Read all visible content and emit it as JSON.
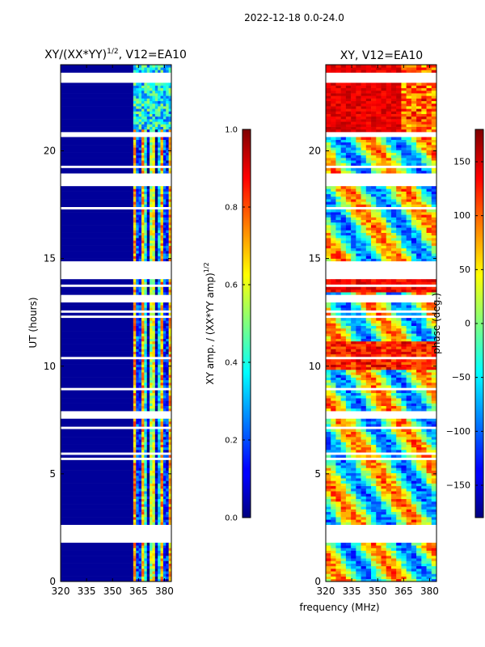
{
  "figure": {
    "suptitle": "2022-12-18 0.0-24.0",
    "shared_xlabel": "frequency (MHz)"
  },
  "chart_data": [
    {
      "type": "heatmap",
      "title": "XY/(XX*YY)^1/2, V12=EA10",
      "title_main": "XY/(XX*YY)",
      "title_exp": "1/2",
      "title_tail": ", V12=EA10",
      "ylabel": "UT (hours)",
      "x_ticks": [
        320,
        335,
        350,
        365,
        380
      ],
      "x_tick_labels": [
        "320",
        "335",
        "350",
        "365",
        "380"
      ],
      "xlim": [
        320,
        384
      ],
      "y_ticks": [
        0,
        5,
        10,
        15,
        20
      ],
      "y_tick_labels": [
        "0",
        "5",
        "10",
        "15",
        "20"
      ],
      "ylim": [
        0,
        24
      ],
      "colorbar": {
        "label": "XY amp. / (XX*YY amp)^1/2",
        "label_main": "XY amp. / (XX*YY amp)",
        "label_exp": "1/2",
        "range": [
          0.0,
          1.0
        ],
        "ticks": [
          0.0,
          0.2,
          0.4,
          0.6,
          0.8,
          1.0
        ],
        "tick_labels": [
          "0.0",
          "0.2",
          "0.4",
          "0.6",
          "0.8",
          "1.0"
        ],
        "colormap": "jet"
      }
    },
    {
      "type": "heatmap",
      "title": "XY, V12=EA10",
      "x_ticks": [
        320,
        335,
        350,
        365,
        380
      ],
      "x_tick_labels": [
        "320",
        "335",
        "350",
        "365",
        "380"
      ],
      "xlim": [
        320,
        384
      ],
      "y_ticks": [
        0,
        5,
        10,
        15,
        20
      ],
      "y_tick_labels": [
        "0",
        "5",
        "10",
        "15",
        "20"
      ],
      "ylim": [
        0,
        24
      ],
      "colorbar": {
        "label": "phase (deg.)",
        "range": [
          -180,
          180
        ],
        "ticks": [
          -150,
          -100,
          -50,
          0,
          50,
          100,
          150
        ],
        "tick_labels": [
          "−150",
          "−100",
          "−50",
          "0",
          "50",
          "100",
          "150"
        ],
        "colormap": "jet"
      }
    }
  ]
}
